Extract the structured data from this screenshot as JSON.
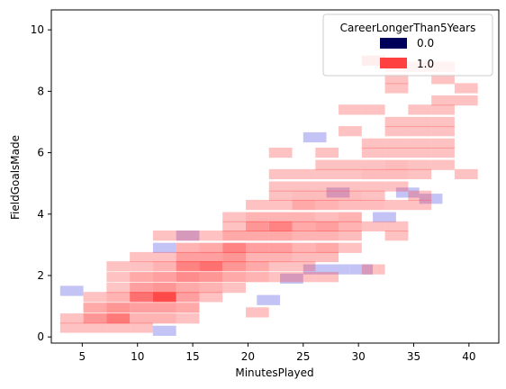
{
  "chart_data": {
    "type": "heatmap",
    "xlabel": "MinutesPlayed",
    "ylabel": "FieldGoalsMade",
    "xlim": [
      2.2,
      42.7
    ],
    "ylim": [
      -0.2,
      10.65
    ],
    "xticks": [
      5,
      10,
      15,
      20,
      25,
      30,
      35,
      40
    ],
    "yticks": [
      0,
      2,
      4,
      6,
      8,
      10
    ],
    "bin_width_x": 2.1,
    "bin_height_y": 0.33,
    "legend": {
      "title": "CareerLongerThan5Years",
      "placement": "top-right",
      "entries": [
        {
          "label": "0.0",
          "color": "#00005a"
        },
        {
          "label": "1.0",
          "color": "#ff4040"
        }
      ]
    },
    "series": [
      {
        "name": "0.0",
        "color": "#c3c3f5",
        "cells": [
          [
            4.05,
            1.5
          ],
          [
            12.45,
            0.2
          ],
          [
            12.45,
            2.9
          ],
          [
            14.55,
            3.3
          ],
          [
            21.85,
            1.2
          ],
          [
            23.95,
            1.9
          ],
          [
            26.05,
            6.5
          ],
          [
            26.05,
            2.2
          ],
          [
            28.15,
            2.2
          ],
          [
            28.15,
            4.7
          ],
          [
            30.25,
            2.2
          ],
          [
            32.35,
            3.9
          ],
          [
            34.45,
            4.7
          ],
          [
            36.55,
            4.5
          ]
        ]
      },
      {
        "name": "1.0",
        "color": "#ff4040",
        "cells": [
          [
            4.05,
            0.3,
            0.32
          ],
          [
            4.05,
            0.6,
            0.32
          ],
          [
            6.15,
            0.3,
            0.32
          ],
          [
            6.15,
            0.6,
            0.55
          ],
          [
            6.15,
            0.95,
            0.45
          ],
          [
            6.15,
            1.3,
            0.32
          ],
          [
            8.25,
            0.3,
            0.32
          ],
          [
            8.25,
            0.6,
            0.7
          ],
          [
            8.25,
            0.95,
            0.55
          ],
          [
            8.25,
            1.3,
            0.4
          ],
          [
            8.25,
            1.6,
            0.3
          ],
          [
            8.25,
            1.95,
            0.32
          ],
          [
            8.25,
            2.3,
            0.32
          ],
          [
            10.35,
            0.3,
            0.32
          ],
          [
            10.35,
            0.6,
            0.4
          ],
          [
            10.35,
            0.95,
            0.5
          ],
          [
            10.35,
            1.3,
            0.75
          ],
          [
            10.35,
            1.6,
            0.5
          ],
          [
            10.35,
            1.95,
            0.45
          ],
          [
            10.35,
            2.3,
            0.32
          ],
          [
            10.35,
            2.6,
            0.32
          ],
          [
            12.45,
            0.6,
            0.4
          ],
          [
            12.45,
            0.95,
            0.5
          ],
          [
            12.45,
            1.3,
            0.95
          ],
          [
            12.45,
            1.6,
            0.55
          ],
          [
            12.45,
            1.95,
            0.5
          ],
          [
            12.45,
            2.3,
            0.4
          ],
          [
            12.45,
            2.6,
            0.32
          ],
          [
            12.45,
            3.3,
            0.32
          ],
          [
            14.55,
            0.6,
            0.32
          ],
          [
            14.55,
            0.95,
            0.45
          ],
          [
            14.55,
            1.3,
            0.5
          ],
          [
            14.55,
            1.6,
            0.45
          ],
          [
            14.55,
            1.95,
            0.6
          ],
          [
            14.55,
            2.3,
            0.65
          ],
          [
            14.55,
            2.6,
            0.5
          ],
          [
            14.55,
            2.9,
            0.4
          ],
          [
            14.55,
            3.3,
            0.32
          ],
          [
            16.65,
            1.3,
            0.32
          ],
          [
            16.65,
            1.6,
            0.4
          ],
          [
            16.65,
            1.95,
            0.55
          ],
          [
            16.65,
            2.3,
            0.75
          ],
          [
            16.65,
            2.6,
            0.5
          ],
          [
            16.65,
            2.9,
            0.45
          ],
          [
            16.65,
            3.3,
            0.32
          ],
          [
            18.75,
            1.6,
            0.32
          ],
          [
            18.75,
            1.95,
            0.45
          ],
          [
            18.75,
            2.3,
            0.55
          ],
          [
            18.75,
            2.6,
            0.55
          ],
          [
            18.75,
            2.9,
            0.65
          ],
          [
            18.75,
            3.3,
            0.45
          ],
          [
            18.75,
            3.6,
            0.32
          ],
          [
            18.75,
            3.9,
            0.32
          ],
          [
            20.85,
            0.8,
            0.32
          ],
          [
            20.85,
            1.95,
            0.4
          ],
          [
            20.85,
            2.3,
            0.45
          ],
          [
            20.85,
            2.6,
            0.4
          ],
          [
            20.85,
            2.9,
            0.5
          ],
          [
            20.85,
            3.3,
            0.45
          ],
          [
            20.85,
            3.6,
            0.55
          ],
          [
            20.85,
            3.9,
            0.4
          ],
          [
            20.85,
            4.3,
            0.32
          ],
          [
            22.95,
            1.95,
            0.32
          ],
          [
            22.95,
            2.3,
            0.32
          ],
          [
            22.95,
            2.6,
            0.4
          ],
          [
            22.95,
            2.9,
            0.5
          ],
          [
            22.95,
            3.3,
            0.45
          ],
          [
            22.95,
            3.6,
            0.65
          ],
          [
            22.95,
            3.9,
            0.4
          ],
          [
            22.95,
            4.3,
            0.32
          ],
          [
            22.95,
            4.6,
            0.32
          ],
          [
            22.95,
            4.9,
            0.32
          ],
          [
            22.95,
            5.3,
            0.32
          ],
          [
            22.95,
            6.0,
            0.32
          ],
          [
            25.05,
            1.95,
            0.32
          ],
          [
            25.05,
            2.3,
            0.32
          ],
          [
            25.05,
            2.6,
            0.35
          ],
          [
            25.05,
            2.9,
            0.4
          ],
          [
            25.05,
            3.3,
            0.4
          ],
          [
            25.05,
            3.6,
            0.45
          ],
          [
            25.05,
            3.9,
            0.4
          ],
          [
            25.05,
            4.3,
            0.45
          ],
          [
            25.05,
            4.6,
            0.35
          ],
          [
            25.05,
            4.9,
            0.32
          ],
          [
            25.05,
            5.3,
            0.32
          ],
          [
            27.15,
            1.95,
            0.32
          ],
          [
            27.15,
            2.6,
            0.35
          ],
          [
            27.15,
            2.9,
            0.45
          ],
          [
            27.15,
            3.3,
            0.4
          ],
          [
            27.15,
            3.6,
            0.5
          ],
          [
            27.15,
            3.9,
            0.35
          ],
          [
            27.15,
            4.3,
            0.4
          ],
          [
            27.15,
            4.6,
            0.35
          ],
          [
            27.15,
            4.9,
            0.32
          ],
          [
            27.15,
            5.3,
            0.32
          ],
          [
            27.15,
            5.6,
            0.32
          ],
          [
            27.15,
            6.0,
            0.32
          ],
          [
            29.25,
            2.9,
            0.32
          ],
          [
            29.25,
            3.3,
            0.35
          ],
          [
            29.25,
            3.6,
            0.4
          ],
          [
            29.25,
            3.9,
            0.4
          ],
          [
            29.25,
            4.3,
            0.35
          ],
          [
            29.25,
            4.6,
            0.35
          ],
          [
            29.25,
            4.9,
            0.32
          ],
          [
            29.25,
            5.3,
            0.32
          ],
          [
            29.25,
            5.6,
            0.32
          ],
          [
            29.25,
            6.7,
            0.32
          ],
          [
            29.25,
            7.4,
            0.32
          ],
          [
            31.35,
            2.2,
            0.32
          ],
          [
            31.35,
            3.6,
            0.32
          ],
          [
            31.35,
            4.3,
            0.35
          ],
          [
            31.35,
            4.6,
            0.32
          ],
          [
            31.35,
            4.9,
            0.32
          ],
          [
            31.35,
            5.3,
            0.35
          ],
          [
            31.35,
            5.6,
            0.32
          ],
          [
            31.35,
            6.0,
            0.32
          ],
          [
            31.35,
            6.3,
            0.32
          ],
          [
            31.35,
            7.4,
            0.32
          ],
          [
            31.35,
            9.0,
            0.45
          ],
          [
            33.45,
            3.3,
            0.32
          ],
          [
            33.45,
            3.6,
            0.32
          ],
          [
            33.45,
            4.3,
            0.32
          ],
          [
            33.45,
            4.9,
            0.32
          ],
          [
            33.45,
            5.3,
            0.35
          ],
          [
            33.45,
            5.6,
            0.35
          ],
          [
            33.45,
            6.0,
            0.32
          ],
          [
            33.45,
            6.3,
            0.32
          ],
          [
            33.45,
            6.7,
            0.32
          ],
          [
            33.45,
            7.0,
            0.32
          ],
          [
            33.45,
            8.1,
            0.32
          ],
          [
            33.45,
            8.4,
            0.32
          ],
          [
            33.45,
            8.8,
            0.32
          ],
          [
            35.55,
            4.3,
            0.32
          ],
          [
            35.55,
            4.6,
            0.32
          ],
          [
            35.55,
            5.3,
            0.32
          ],
          [
            35.55,
            5.6,
            0.32
          ],
          [
            35.55,
            6.0,
            0.32
          ],
          [
            35.55,
            6.3,
            0.32
          ],
          [
            35.55,
            6.7,
            0.32
          ],
          [
            35.55,
            7.0,
            0.32
          ],
          [
            35.55,
            7.4,
            0.32
          ],
          [
            35.55,
            8.8,
            0.32
          ],
          [
            37.65,
            5.6,
            0.32
          ],
          [
            37.65,
            6.0,
            0.32
          ],
          [
            37.65,
            6.3,
            0.32
          ],
          [
            37.65,
            6.7,
            0.32
          ],
          [
            37.65,
            7.0,
            0.32
          ],
          [
            37.65,
            7.4,
            0.32
          ],
          [
            37.65,
            7.7,
            0.32
          ],
          [
            37.65,
            8.4,
            0.32
          ],
          [
            37.65,
            8.8,
            0.32
          ],
          [
            39.75,
            5.3,
            0.32
          ],
          [
            39.75,
            7.7,
            0.32
          ],
          [
            39.75,
            8.1,
            0.32
          ]
        ]
      }
    ]
  }
}
